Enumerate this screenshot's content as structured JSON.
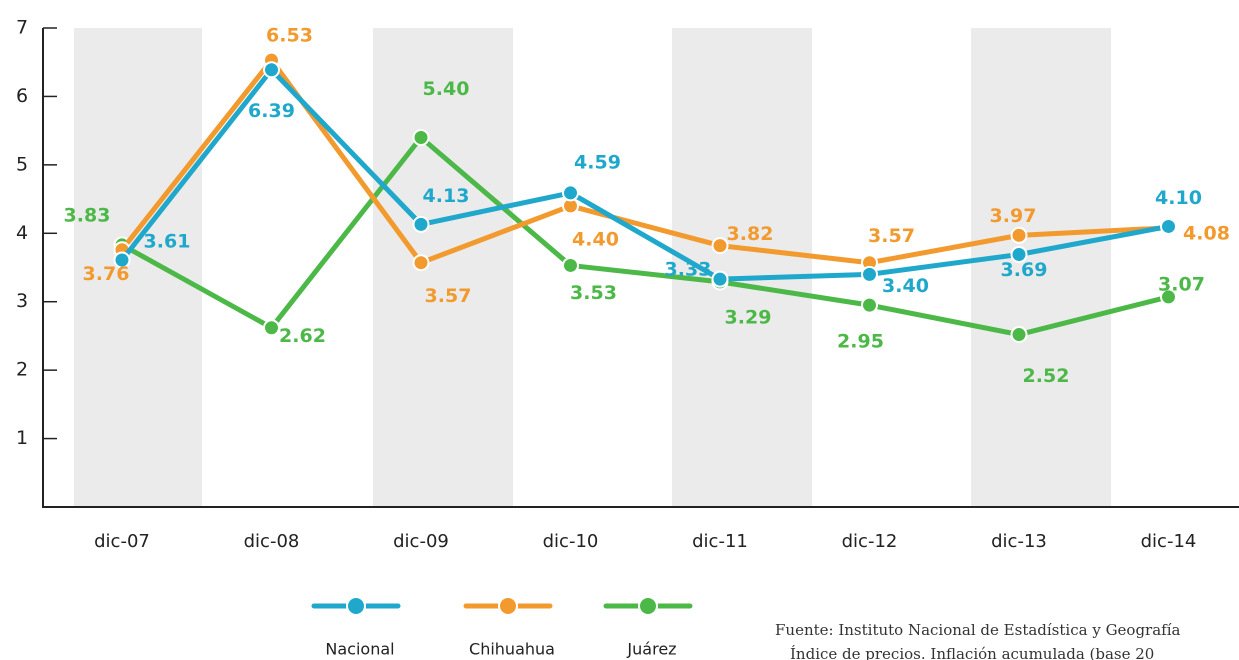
{
  "chart_data": {
    "type": "line",
    "categories": [
      "dic-07",
      "dic-08",
      "dic-09",
      "dic-10",
      "dic-11",
      "dic-12",
      "dic-13",
      "dic-14"
    ],
    "series": [
      {
        "name": "Nacional",
        "color": "#1fa8cc",
        "values": [
          3.61,
          6.39,
          4.13,
          4.59,
          3.33,
          3.4,
          3.69,
          4.1
        ],
        "value_labels": [
          "3.61",
          "6.39",
          "4.13",
          "4.59",
          "3.33",
          "3.40",
          "3.69",
          "4.10"
        ]
      },
      {
        "name": "Chihuahua",
        "color": "#f29a2e",
        "values": [
          3.76,
          6.53,
          3.57,
          4.4,
          3.82,
          3.57,
          3.97,
          4.08
        ],
        "value_labels": [
          "3.76",
          "6.53",
          "3.57",
          "4.40",
          "3.82",
          "3.57",
          "3.97",
          "4.08"
        ]
      },
      {
        "name": "Juárez",
        "color": "#4cb848",
        "values": [
          3.83,
          2.62,
          5.4,
          3.53,
          3.29,
          2.95,
          2.52,
          3.07
        ],
        "value_labels": [
          "3.83",
          "2.62",
          "5.40",
          "3.53",
          "3.29",
          "2.95",
          "2.52",
          "3.07"
        ]
      }
    ],
    "ylim": [
      0,
      7
    ],
    "yticks": [
      1,
      2,
      3,
      4,
      5,
      6,
      7
    ],
    "source": [
      "Fuente: Instituto Nacional de Estadística y Geografía",
      "Índice de precios. Inflación acumulada (base 20"
    ]
  }
}
